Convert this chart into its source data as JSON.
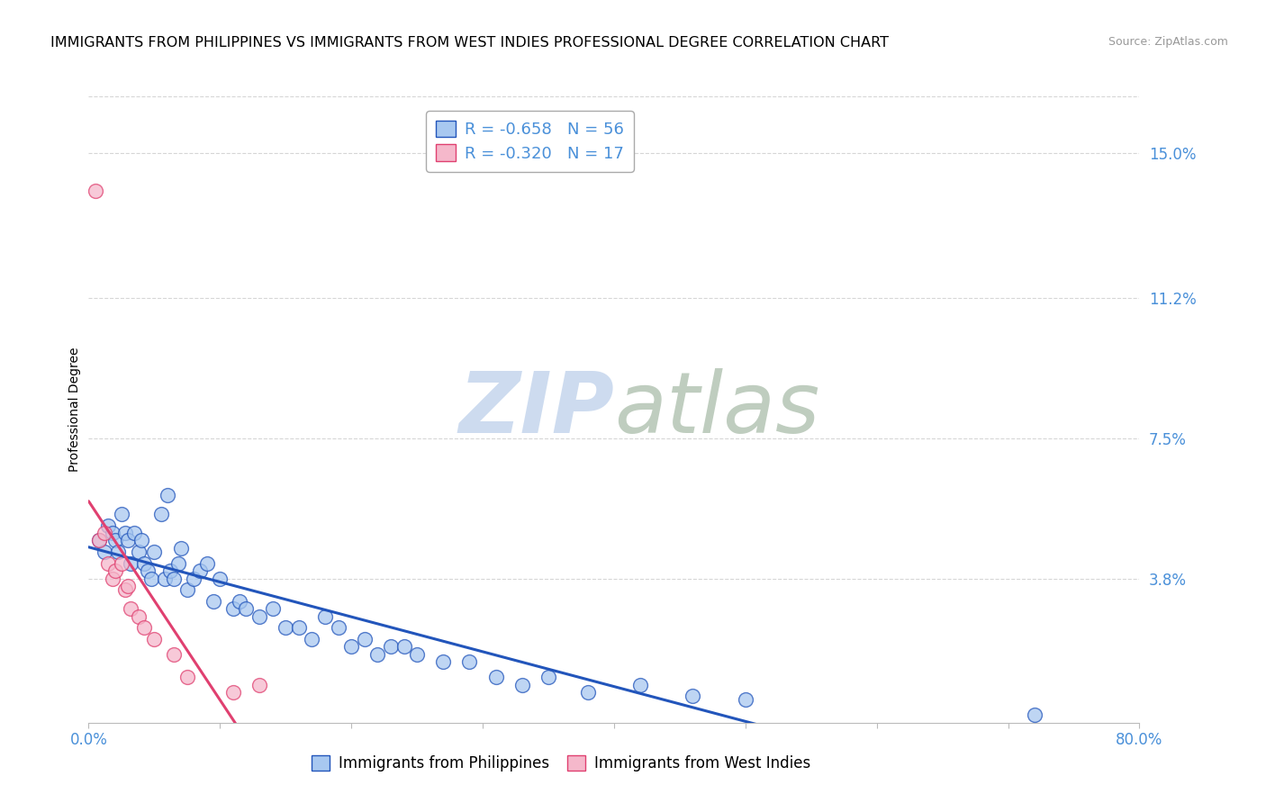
{
  "title": "IMMIGRANTS FROM PHILIPPINES VS IMMIGRANTS FROM WEST INDIES PROFESSIONAL DEGREE CORRELATION CHART",
  "source": "Source: ZipAtlas.com",
  "ylabel": "Professional Degree",
  "xlim": [
    0.0,
    0.8
  ],
  "ylim": [
    0.0,
    0.165
  ],
  "yticks": [
    0.0,
    0.038,
    0.075,
    0.112,
    0.15
  ],
  "ytick_labels": [
    "",
    "3.8%",
    "7.5%",
    "11.2%",
    "15.0%"
  ],
  "xticks": [
    0.0,
    0.1,
    0.2,
    0.3,
    0.4,
    0.5,
    0.6,
    0.7,
    0.8
  ],
  "xtick_labels": [
    "0.0%",
    "",
    "",
    "",
    "",
    "",
    "",
    "",
    "80.0%"
  ],
  "legend1_label": "R = -0.658   N = 56",
  "legend2_label": "R = -0.320   N = 17",
  "legend_label1": "Immigrants from Philippines",
  "legend_label2": "Immigrants from West Indies",
  "color_philippines": "#A8C8F0",
  "color_west_indies": "#F5B8CB",
  "color_philippines_line": "#2255BB",
  "color_west_indies_line": "#E04070",
  "philippines_x": [
    0.008,
    0.012,
    0.015,
    0.018,
    0.02,
    0.022,
    0.025,
    0.028,
    0.03,
    0.032,
    0.035,
    0.038,
    0.04,
    0.042,
    0.045,
    0.048,
    0.05,
    0.055,
    0.058,
    0.06,
    0.062,
    0.065,
    0.068,
    0.07,
    0.075,
    0.08,
    0.085,
    0.09,
    0.095,
    0.1,
    0.11,
    0.115,
    0.12,
    0.13,
    0.14,
    0.15,
    0.16,
    0.17,
    0.18,
    0.19,
    0.2,
    0.21,
    0.22,
    0.23,
    0.24,
    0.25,
    0.27,
    0.29,
    0.31,
    0.33,
    0.35,
    0.38,
    0.42,
    0.46,
    0.5,
    0.72
  ],
  "philippines_y": [
    0.048,
    0.045,
    0.052,
    0.05,
    0.048,
    0.045,
    0.055,
    0.05,
    0.048,
    0.042,
    0.05,
    0.045,
    0.048,
    0.042,
    0.04,
    0.038,
    0.045,
    0.055,
    0.038,
    0.06,
    0.04,
    0.038,
    0.042,
    0.046,
    0.035,
    0.038,
    0.04,
    0.042,
    0.032,
    0.038,
    0.03,
    0.032,
    0.03,
    0.028,
    0.03,
    0.025,
    0.025,
    0.022,
    0.028,
    0.025,
    0.02,
    0.022,
    0.018,
    0.02,
    0.02,
    0.018,
    0.016,
    0.016,
    0.012,
    0.01,
    0.012,
    0.008,
    0.01,
    0.007,
    0.006,
    0.002
  ],
  "west_indies_x": [
    0.005,
    0.008,
    0.012,
    0.015,
    0.018,
    0.02,
    0.025,
    0.028,
    0.03,
    0.032,
    0.038,
    0.042,
    0.05,
    0.065,
    0.075,
    0.11,
    0.13
  ],
  "west_indies_y": [
    0.14,
    0.048,
    0.05,
    0.042,
    0.038,
    0.04,
    0.042,
    0.035,
    0.036,
    0.03,
    0.028,
    0.025,
    0.022,
    0.018,
    0.012,
    0.008,
    0.01
  ],
  "background_color": "#FFFFFF",
  "grid_color": "#CCCCCC",
  "title_fontsize": 11.5,
  "axis_label_fontsize": 10,
  "tick_fontsize": 12
}
